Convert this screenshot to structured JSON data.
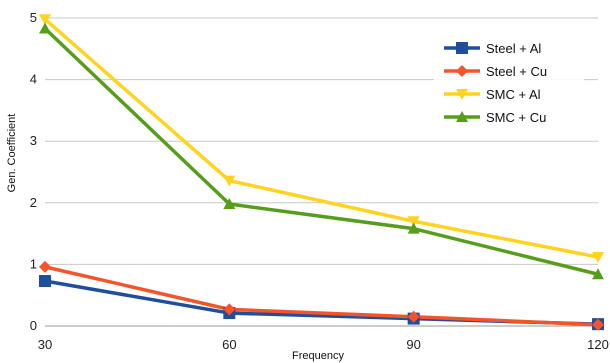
{
  "chart_data": {
    "type": "line",
    "title": "",
    "xlabel": "Frequency",
    "ylabel": "Gen. Coefficient",
    "x": [
      30,
      60,
      90,
      120
    ],
    "x_tick_labels": [
      "30",
      "60",
      "90",
      "120"
    ],
    "y_tick_labels": [
      "0",
      "1",
      "2",
      "3",
      "4",
      "5"
    ],
    "xlim": [
      30,
      120
    ],
    "ylim": [
      0,
      5
    ],
    "grid": "horizontal",
    "legend_position": "top-right",
    "series": [
      {
        "name": "Steel + Al",
        "color": "#1f4e9c",
        "marker": "square",
        "values": [
          0.73,
          0.21,
          0.12,
          0.03
        ]
      },
      {
        "name": "Steel + Cu",
        "color": "#f2552c",
        "marker": "diamond",
        "values": [
          0.96,
          0.27,
          0.15,
          0.02
        ]
      },
      {
        "name": "SMC + Al",
        "color": "#ffd320",
        "marker": "triangle-down",
        "values": [
          4.98,
          2.36,
          1.7,
          1.12
        ]
      },
      {
        "name": "SMC + Cu",
        "color": "#579d1c",
        "marker": "triangle-up",
        "values": [
          4.83,
          1.98,
          1.58,
          0.84
        ]
      }
    ]
  }
}
